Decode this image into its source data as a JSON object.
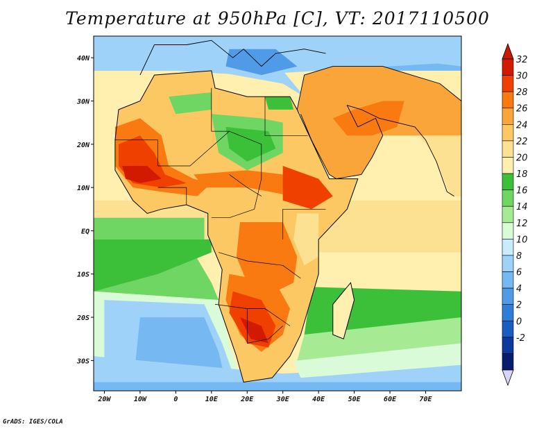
{
  "title": "Temperature at 950hPa [C], VT: 2017110500",
  "credit": "GrADS: IGES/COLA",
  "map": {
    "lon_range": [
      -23,
      80
    ],
    "lat_range": [
      -37,
      45
    ],
    "lon_ticks": [
      {
        "value": -20,
        "label": "20W"
      },
      {
        "value": -10,
        "label": "10W"
      },
      {
        "value": 0,
        "label": "0"
      },
      {
        "value": 10,
        "label": "10E"
      },
      {
        "value": 20,
        "label": "20E"
      },
      {
        "value": 30,
        "label": "30E"
      },
      {
        "value": 40,
        "label": "40E"
      },
      {
        "value": 50,
        "label": "50E"
      },
      {
        "value": 60,
        "label": "60E"
      },
      {
        "value": 70,
        "label": "70E"
      }
    ],
    "lat_ticks": [
      {
        "value": 40,
        "label": "40N"
      },
      {
        "value": 30,
        "label": "30N"
      },
      {
        "value": 20,
        "label": "20N"
      },
      {
        "value": 10,
        "label": "10N"
      },
      {
        "value": 0,
        "label": "EQ"
      },
      {
        "value": -10,
        "label": "10S"
      },
      {
        "value": -20,
        "label": "20S"
      },
      {
        "value": -30,
        "label": "30S"
      }
    ]
  },
  "colorbar": {
    "levels": [
      "32",
      "30",
      "28",
      "26",
      "24",
      "22",
      "20",
      "18",
      "16",
      "14",
      "12",
      "10",
      "8",
      "6",
      "4",
      "2",
      "0",
      "-2"
    ],
    "colors": [
      "#d11a00",
      "#f04000",
      "#f87a10",
      "#f9a53a",
      "#fbc863",
      "#fce192",
      "#fff0b0",
      "#3cc03a",
      "#6fd563",
      "#a6eb94",
      "#dafbd8",
      "#c8ecf8",
      "#9ed2f8",
      "#75b8f2",
      "#4f9be8",
      "#2f7ed6",
      "#1a5cc0",
      "#0c3a9a",
      "#0a1c6e"
    ],
    "top_arrow_color": "#c81800",
    "bottom_arrow_color": "#d8d4f4"
  }
}
